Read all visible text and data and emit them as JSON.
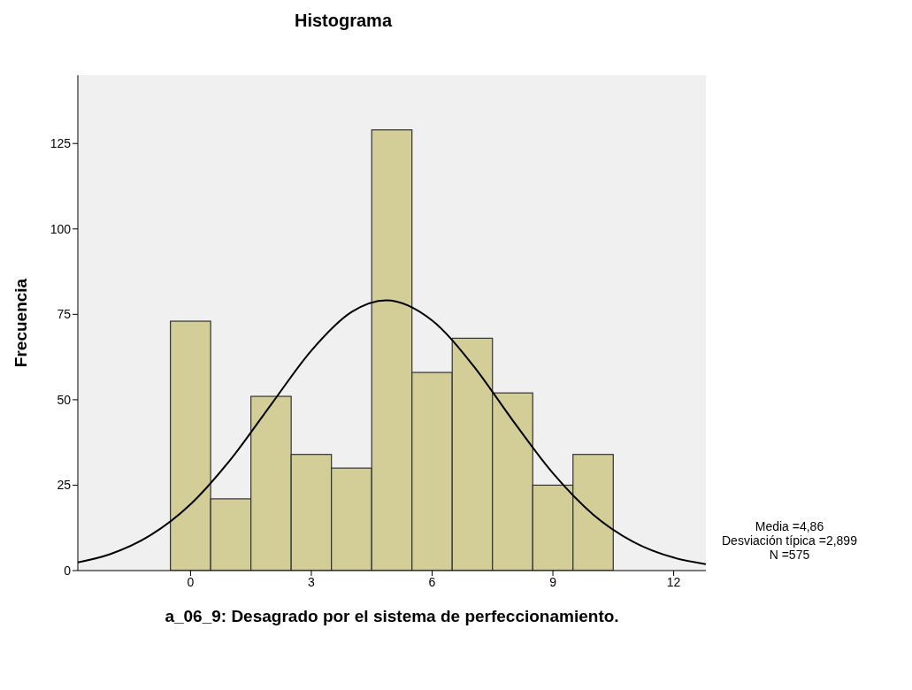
{
  "chart_data": {
    "type": "histogram",
    "title": "Histograma",
    "xlabel": "a_06_9: Desagrado por el sistema de perfeccionamiento.",
    "ylabel": "Frecuencia",
    "bins": [
      -0.5,
      0.5,
      1.5,
      2.5,
      3.5,
      4.5,
      5.5,
      6.5,
      7.5,
      8.5,
      9.5,
      10.5
    ],
    "values": [
      73,
      21,
      51,
      34,
      30,
      129,
      58,
      68,
      52,
      25,
      34
    ],
    "color": "#d3ce97",
    "series": [
      {
        "type": "line",
        "color": "#000000",
        "x": [
          -2.8,
          -2,
          -1,
          0,
          1,
          2,
          3,
          4,
          4.86,
          6,
          7,
          8,
          9,
          10,
          11,
          12,
          12.8
        ],
        "values": [
          2.4,
          4.8,
          10.3,
          19.4,
          32.6,
          48.6,
          64.4,
          75.7,
          79.1,
          73.2,
          60.3,
          44,
          28.5,
          16.4,
          8.4,
          3.8,
          1.9
        ]
      }
    ],
    "xlim": [
      -2.8,
      12.8
    ],
    "xticks": [
      0,
      3,
      6,
      9,
      12
    ],
    "ylim": [
      0,
      145
    ],
    "yticks": [
      0,
      25,
      50,
      75,
      100,
      125
    ],
    "marker": "none",
    "grid": false,
    "annotations": [
      "Media =4,86",
      "Desviación típica =2,899",
      "N =575"
    ]
  }
}
